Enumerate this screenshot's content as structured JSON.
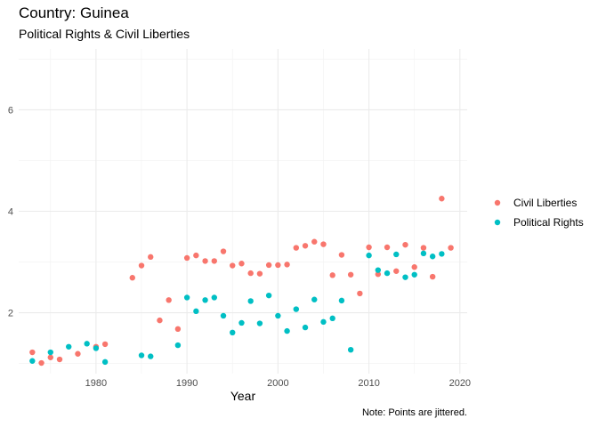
{
  "chart_data": {
    "type": "scatter",
    "title": "Country: Guinea",
    "subtitle": "Political Rights & Civil Liberties",
    "xlabel": "Year",
    "ylabel": "",
    "caption": "Note: Points are jittered.",
    "xlim": [
      1971.5,
      2020.8
    ],
    "ylim": [
      0.8,
      7.2
    ],
    "xticks": [
      1980,
      1990,
      2000,
      2010,
      2020
    ],
    "yticks": [
      2,
      4,
      6
    ],
    "grid": true,
    "legend_position": "right",
    "series": [
      {
        "name": "Civil Liberties",
        "color": "#F8766D",
        "points": [
          [
            1973,
            1.22
          ],
          [
            1974,
            1.01
          ],
          [
            1975,
            1.12
          ],
          [
            1976,
            1.08
          ],
          [
            1978,
            1.19
          ],
          [
            1980,
            1.33
          ],
          [
            1981,
            1.38
          ],
          [
            1984,
            2.69
          ],
          [
            1985,
            2.93
          ],
          [
            1986,
            3.1
          ],
          [
            1987,
            1.85
          ],
          [
            1988,
            2.25
          ],
          [
            1989,
            1.68
          ],
          [
            1990,
            3.08
          ],
          [
            1991,
            3.13
          ],
          [
            1992,
            3.02
          ],
          [
            1993,
            3.02
          ],
          [
            1994,
            3.21
          ],
          [
            1995,
            2.93
          ],
          [
            1996,
            2.97
          ],
          [
            1997,
            2.78
          ],
          [
            1998,
            2.77
          ],
          [
            1999,
            2.94
          ],
          [
            2000,
            2.94
          ],
          [
            2001,
            2.95
          ],
          [
            2002,
            3.28
          ],
          [
            2003,
            3.32
          ],
          [
            2004,
            3.4
          ],
          [
            2005,
            3.35
          ],
          [
            2006,
            2.74
          ],
          [
            2007,
            3.14
          ],
          [
            2008,
            2.75
          ],
          [
            2009,
            2.38
          ],
          [
            2010,
            3.29
          ],
          [
            2011,
            2.76
          ],
          [
            2012,
            3.29
          ],
          [
            2013,
            2.82
          ],
          [
            2014,
            3.34
          ],
          [
            2015,
            2.9
          ],
          [
            2016,
            3.28
          ],
          [
            2017,
            2.71
          ],
          [
            2018,
            4.25
          ],
          [
            2019,
            3.28
          ]
        ]
      },
      {
        "name": "Political Rights",
        "color": "#00BFC4",
        "points": [
          [
            1973,
            1.05
          ],
          [
            1975,
            1.22
          ],
          [
            1977,
            1.33
          ],
          [
            1979,
            1.39
          ],
          [
            1980,
            1.3
          ],
          [
            1981,
            1.03
          ],
          [
            1985,
            1.16
          ],
          [
            1986,
            1.14
          ],
          [
            1989,
            1.36
          ],
          [
            1990,
            2.3
          ],
          [
            1991,
            2.03
          ],
          [
            1992,
            2.25
          ],
          [
            1993,
            2.3
          ],
          [
            1994,
            1.94
          ],
          [
            1995,
            1.61
          ],
          [
            1996,
            1.8
          ],
          [
            1997,
            2.23
          ],
          [
            1998,
            1.79
          ],
          [
            1999,
            2.34
          ],
          [
            2000,
            1.94
          ],
          [
            2001,
            1.64
          ],
          [
            2002,
            2.07
          ],
          [
            2003,
            1.71
          ],
          [
            2004,
            2.26
          ],
          [
            2005,
            1.82
          ],
          [
            2006,
            1.89
          ],
          [
            2007,
            2.24
          ],
          [
            2008,
            1.27
          ],
          [
            2010,
            3.13
          ],
          [
            2011,
            2.84
          ],
          [
            2012,
            2.78
          ],
          [
            2013,
            3.15
          ],
          [
            2014,
            2.7
          ],
          [
            2015,
            2.75
          ],
          [
            2016,
            3.17
          ],
          [
            2017,
            3.11
          ],
          [
            2018,
            3.16
          ]
        ]
      }
    ]
  }
}
